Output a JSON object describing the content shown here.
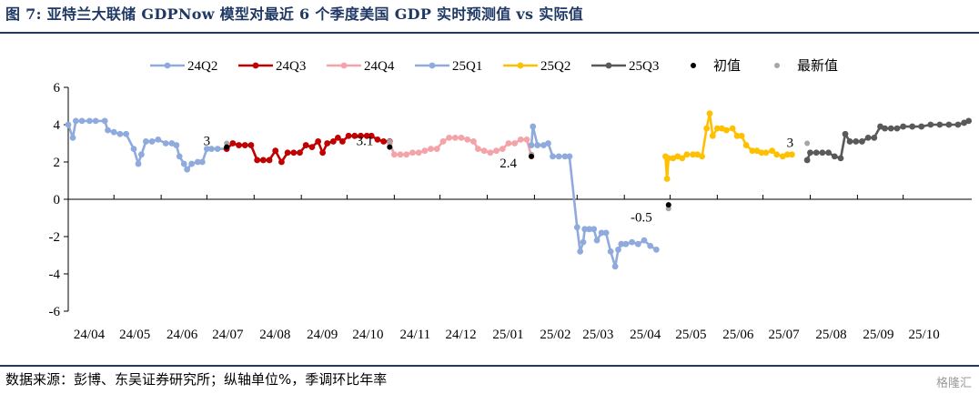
{
  "figure": {
    "title": "图 7:  亚特兰大联储 GDPNow 模型对最近 6 个季度美国 GDP 实时预测值 vs 实际值",
    "source": "数据来源：彭博、东吴证券研究所；纵轴单位%，季调环比年率",
    "watermark": "格隆汇"
  },
  "chart_data": {
    "type": "line",
    "title": "",
    "xlabel": "",
    "ylabel": "",
    "ylim": [
      -6,
      6
    ],
    "yticks": [
      -6,
      -4,
      -2,
      0,
      2,
      4,
      6
    ],
    "xlim": [
      "2024-04-01",
      "2025-11-15"
    ],
    "xticks": [
      {
        "date": "2024-04-01",
        "label": "24/04"
      },
      {
        "date": "2024-05-01",
        "label": "24/05"
      },
      {
        "date": "2024-06-01",
        "label": "24/06"
      },
      {
        "date": "2024-07-01",
        "label": "24/07"
      },
      {
        "date": "2024-08-01",
        "label": "24/08"
      },
      {
        "date": "2024-09-01",
        "label": "24/09"
      },
      {
        "date": "2024-10-01",
        "label": "24/10"
      },
      {
        "date": "2024-11-01",
        "label": "24/11"
      },
      {
        "date": "2024-12-01",
        "label": "24/12"
      },
      {
        "date": "2025-01-01",
        "label": "25/01"
      },
      {
        "date": "2025-02-01",
        "label": "25/02"
      },
      {
        "date": "2025-03-01",
        "label": "25/03"
      },
      {
        "date": "2025-04-01",
        "label": "25/04"
      },
      {
        "date": "2025-05-01",
        "label": "25/05"
      },
      {
        "date": "2025-06-01",
        "label": "25/06"
      },
      {
        "date": "2025-07-01",
        "label": "25/07"
      },
      {
        "date": "2025-08-01",
        "label": "25/08"
      },
      {
        "date": "2025-09-01",
        "label": "25/09"
      },
      {
        "date": "2025-10-01",
        "label": "25/10"
      }
    ],
    "grid": false,
    "legend_position": "top",
    "series": [
      {
        "name": "24Q2",
        "color": "#8faadc",
        "points": [
          [
            "2024-04-01",
            4.0
          ],
          [
            "2024-04-04",
            3.3
          ],
          [
            "2024-04-06",
            4.2
          ],
          [
            "2024-04-10",
            4.2
          ],
          [
            "2024-04-15",
            4.2
          ],
          [
            "2024-04-19",
            4.2
          ],
          [
            "2024-04-25",
            4.2
          ],
          [
            "2024-04-27",
            3.7
          ],
          [
            "2024-05-01",
            3.6
          ],
          [
            "2024-05-05",
            3.5
          ],
          [
            "2024-05-09",
            3.5
          ],
          [
            "2024-05-14",
            2.7
          ],
          [
            "2024-05-17",
            1.9
          ],
          [
            "2024-05-19",
            2.4
          ],
          [
            "2024-05-22",
            3.1
          ],
          [
            "2024-05-26",
            3.1
          ],
          [
            "2024-05-30",
            3.2
          ],
          [
            "2024-06-04",
            3.0
          ],
          [
            "2024-06-08",
            3.0
          ],
          [
            "2024-06-11",
            2.9
          ],
          [
            "2024-06-13",
            2.3
          ],
          [
            "2024-06-16",
            1.9
          ],
          [
            "2024-06-18",
            1.6
          ],
          [
            "2024-06-21",
            1.9
          ],
          [
            "2024-06-25",
            2.0
          ],
          [
            "2024-06-28",
            2.0
          ],
          [
            "2024-07-01",
            2.7
          ],
          [
            "2024-07-04",
            2.7
          ],
          [
            "2024-07-08",
            2.7
          ],
          [
            "2024-07-14",
            2.7
          ]
        ]
      },
      {
        "name": "24Q3",
        "color": "#c00000",
        "points": [
          [
            "2024-07-14",
            2.7
          ],
          [
            "2024-07-18",
            3.0
          ],
          [
            "2024-07-22",
            2.9
          ],
          [
            "2024-07-26",
            2.9
          ],
          [
            "2024-07-30",
            2.9
          ],
          [
            "2024-08-03",
            2.1
          ],
          [
            "2024-08-07",
            2.1
          ],
          [
            "2024-08-11",
            2.1
          ],
          [
            "2024-08-15",
            2.6
          ],
          [
            "2024-08-19",
            2.0
          ],
          [
            "2024-08-23",
            2.5
          ],
          [
            "2024-08-27",
            2.5
          ],
          [
            "2024-08-31",
            2.5
          ],
          [
            "2024-09-04",
            2.9
          ],
          [
            "2024-09-08",
            2.8
          ],
          [
            "2024-09-12",
            3.1
          ],
          [
            "2024-09-15",
            2.5
          ],
          [
            "2024-09-18",
            3.0
          ],
          [
            "2024-09-22",
            3.1
          ],
          [
            "2024-09-25",
            3.3
          ],
          [
            "2024-09-28",
            3.1
          ],
          [
            "2024-10-02",
            3.4
          ],
          [
            "2024-10-06",
            3.4
          ],
          [
            "2024-10-10",
            3.4
          ],
          [
            "2024-10-14",
            3.4
          ],
          [
            "2024-10-17",
            3.4
          ],
          [
            "2024-10-21",
            3.2
          ],
          [
            "2024-10-25",
            3.1
          ],
          [
            "2024-10-29",
            3.1
          ]
        ]
      },
      {
        "name": "24Q4",
        "color": "#f4a3a8",
        "points": [
          [
            "2024-10-29",
            3.0
          ],
          [
            "2024-11-01",
            2.4
          ],
          [
            "2024-11-05",
            2.4
          ],
          [
            "2024-11-09",
            2.4
          ],
          [
            "2024-11-13",
            2.5
          ],
          [
            "2024-11-17",
            2.5
          ],
          [
            "2024-11-21",
            2.6
          ],
          [
            "2024-11-25",
            2.7
          ],
          [
            "2024-11-29",
            2.7
          ],
          [
            "2024-12-03",
            3.1
          ],
          [
            "2024-12-07",
            3.3
          ],
          [
            "2024-12-11",
            3.3
          ],
          [
            "2024-12-15",
            3.3
          ],
          [
            "2024-12-19",
            3.2
          ],
          [
            "2024-12-23",
            3.1
          ],
          [
            "2024-12-26",
            2.7
          ],
          [
            "2024-12-30",
            2.6
          ],
          [
            "2025-01-03",
            2.5
          ],
          [
            "2025-01-07",
            2.6
          ],
          [
            "2025-01-11",
            2.7
          ],
          [
            "2025-01-15",
            3.0
          ],
          [
            "2025-01-19",
            3.0
          ],
          [
            "2025-01-23",
            3.2
          ],
          [
            "2025-01-27",
            3.2
          ],
          [
            "2025-01-30",
            2.3
          ]
        ]
      },
      {
        "name": "25Q1",
        "color": "#8faadc",
        "points": [
          [
            "2025-01-30",
            2.9
          ],
          [
            "2025-01-31",
            3.9
          ],
          [
            "2025-02-03",
            2.9
          ],
          [
            "2025-02-07",
            2.9
          ],
          [
            "2025-02-10",
            3.0
          ],
          [
            "2025-02-13",
            2.3
          ],
          [
            "2025-02-17",
            2.3
          ],
          [
            "2025-02-21",
            2.3
          ],
          [
            "2025-02-24",
            2.3
          ],
          [
            "2025-03-01",
            -1.5
          ],
          [
            "2025-03-03",
            -2.8
          ],
          [
            "2025-03-05",
            -2.3
          ],
          [
            "2025-03-06",
            -1.6
          ],
          [
            "2025-03-09",
            -1.6
          ],
          [
            "2025-03-12",
            -1.6
          ],
          [
            "2025-03-14",
            -2.2
          ],
          [
            "2025-03-17",
            -1.8
          ],
          [
            "2025-03-20",
            -1.8
          ],
          [
            "2025-03-23",
            -2.8
          ],
          [
            "2025-03-26",
            -3.6
          ],
          [
            "2025-03-28",
            -2.7
          ],
          [
            "2025-03-30",
            -2.4
          ],
          [
            "2025-04-02",
            -2.4
          ],
          [
            "2025-04-06",
            -2.3
          ],
          [
            "2025-04-10",
            -2.4
          ],
          [
            "2025-04-14",
            -2.2
          ],
          [
            "2025-04-18",
            -2.5
          ],
          [
            "2025-04-22",
            -2.7
          ]
        ]
      },
      {
        "name": "25Q2",
        "color": "#ffc000",
        "points": [
          [
            "2025-04-28",
            2.3
          ],
          [
            "2025-04-29",
            1.1
          ],
          [
            "2025-04-30",
            2.2
          ],
          [
            "2025-05-03",
            2.2
          ],
          [
            "2025-05-06",
            2.3
          ],
          [
            "2025-05-09",
            2.2
          ],
          [
            "2025-05-12",
            2.4
          ],
          [
            "2025-05-16",
            2.4
          ],
          [
            "2025-05-19",
            2.4
          ],
          [
            "2025-05-22",
            2.3
          ],
          [
            "2025-05-25",
            3.8
          ],
          [
            "2025-05-27",
            4.6
          ],
          [
            "2025-05-29",
            3.4
          ],
          [
            "2025-06-01",
            3.8
          ],
          [
            "2025-06-04",
            3.8
          ],
          [
            "2025-06-07",
            3.7
          ],
          [
            "2025-06-11",
            3.8
          ],
          [
            "2025-06-14",
            3.4
          ],
          [
            "2025-06-17",
            3.4
          ],
          [
            "2025-06-20",
            2.9
          ],
          [
            "2025-06-24",
            2.6
          ],
          [
            "2025-06-27",
            2.6
          ],
          [
            "2025-06-30",
            2.5
          ],
          [
            "2025-07-03",
            2.5
          ],
          [
            "2025-07-07",
            2.6
          ],
          [
            "2025-07-10",
            2.4
          ],
          [
            "2025-07-14",
            2.3
          ],
          [
            "2025-07-17",
            2.4
          ],
          [
            "2025-07-20",
            2.4
          ]
        ]
      },
      {
        "name": "25Q3",
        "color": "#595959",
        "points": [
          [
            "2025-07-30",
            2.1
          ],
          [
            "2025-08-01",
            2.5
          ],
          [
            "2025-08-05",
            2.5
          ],
          [
            "2025-08-09",
            2.5
          ],
          [
            "2025-08-13",
            2.5
          ],
          [
            "2025-08-17",
            2.3
          ],
          [
            "2025-08-21",
            2.2
          ],
          [
            "2025-08-24",
            3.5
          ],
          [
            "2025-08-27",
            3.1
          ],
          [
            "2025-08-31",
            3.1
          ],
          [
            "2025-09-04",
            3.1
          ],
          [
            "2025-09-08",
            3.3
          ],
          [
            "2025-09-12",
            3.3
          ],
          [
            "2025-09-16",
            3.9
          ],
          [
            "2025-09-19",
            3.8
          ],
          [
            "2025-09-23",
            3.8
          ],
          [
            "2025-09-27",
            3.8
          ],
          [
            "2025-10-01",
            3.9
          ],
          [
            "2025-10-07",
            3.9
          ],
          [
            "2025-10-13",
            3.9
          ],
          [
            "2025-10-19",
            4.0
          ],
          [
            "2025-10-25",
            4.0
          ],
          [
            "2025-10-31",
            4.0
          ],
          [
            "2025-11-06",
            4.0
          ],
          [
            "2025-11-10",
            4.1
          ],
          [
            "2025-11-13",
            4.2
          ]
        ]
      }
    ],
    "initial_values": {
      "name": "初值",
      "color": "#000000",
      "points": [
        [
          "2024-07-14",
          2.8
        ],
        [
          "2024-10-29",
          2.8
        ],
        [
          "2025-01-30",
          2.3
        ],
        [
          "2025-04-30",
          -0.3
        ]
      ]
    },
    "latest_values": {
      "name": "最新值",
      "color": "#a6a6a6",
      "points": [
        [
          "2024-07-14",
          3.0
        ],
        [
          "2024-10-29",
          3.1
        ],
        [
          "2025-01-30",
          2.4
        ],
        [
          "2025-04-30",
          -0.5
        ],
        [
          "2025-07-30",
          3.0
        ]
      ]
    },
    "annotations": [
      {
        "text": "3",
        "date": "2024-07-14",
        "value": 3.0
      },
      {
        "text": "3.1",
        "date": "2024-10-29",
        "value": 3.1
      },
      {
        "text": "2.4",
        "date": "2025-01-30",
        "value": 2.4
      },
      {
        "text": "-0.5",
        "date": "2025-04-30",
        "value": -0.5
      },
      {
        "text": "3",
        "date": "2025-07-30",
        "value": 3.0
      }
    ]
  }
}
